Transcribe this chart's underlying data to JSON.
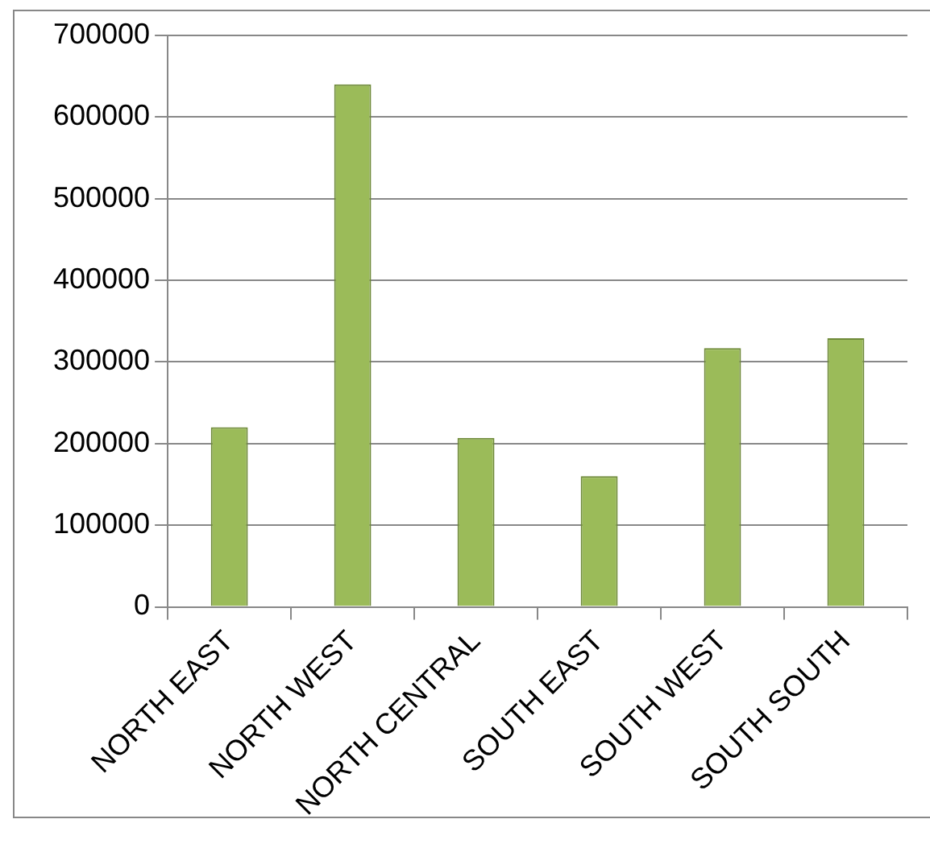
{
  "chart_data": {
    "type": "bar",
    "categories": [
      "NORTH EAST",
      "NORTH WEST",
      "NORTH CENTRAL",
      "SOUTH EAST",
      "SOUTH WEST",
      "SOUTH SOUTH"
    ],
    "values": [
      220000,
      640000,
      207000,
      160000,
      317000,
      329000
    ],
    "color": "#9bbb59",
    "ylim": [
      0,
      700000
    ],
    "yticks": [
      0,
      100000,
      200000,
      300000,
      400000,
      500000,
      600000,
      700000
    ],
    "grid": "y",
    "legend": false
  }
}
